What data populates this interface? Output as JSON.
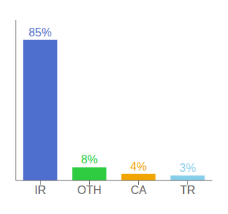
{
  "chart_data": {
    "type": "bar",
    "categories": [
      "IR",
      "OTH",
      "CA",
      "TR"
    ],
    "values": [
      85,
      8,
      4,
      3
    ],
    "value_labels": [
      "85%",
      "8%",
      "4%",
      "3%"
    ],
    "colors": [
      "#4f6fce",
      "#2ecc40",
      "#f0a500",
      "#87ceeb"
    ],
    "ylim": [
      0,
      97
    ],
    "tick_labels": "x",
    "data_labels": true
  }
}
